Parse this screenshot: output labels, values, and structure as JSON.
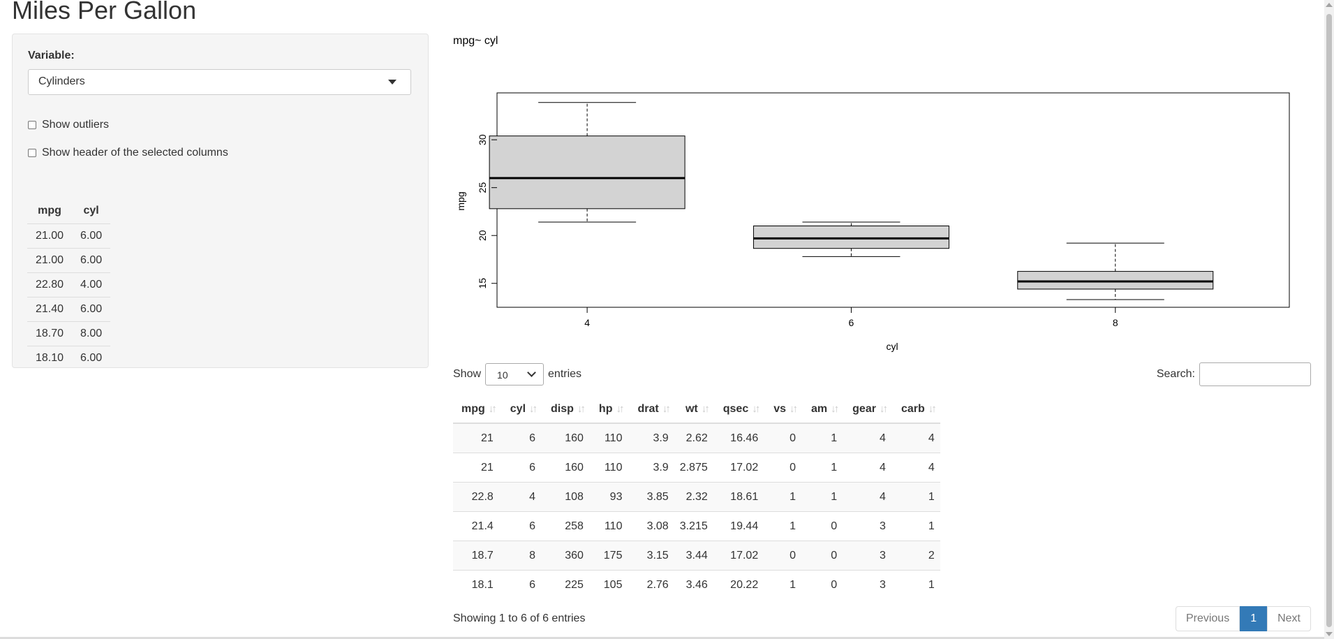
{
  "page_title": "Miles Per Gallon",
  "sidebar": {
    "variable_label": "Variable:",
    "variable_selected": "Cylinders",
    "checkboxes": [
      {
        "label": "Show outliers",
        "checked": false
      },
      {
        "label": "Show header of the selected columns",
        "checked": false
      }
    ],
    "mini_table": {
      "headers": [
        "mpg",
        "cyl"
      ],
      "rows": [
        [
          "21.00",
          "6.00"
        ],
        [
          "21.00",
          "6.00"
        ],
        [
          "22.80",
          "4.00"
        ],
        [
          "21.40",
          "6.00"
        ],
        [
          "18.70",
          "8.00"
        ],
        [
          "18.10",
          "6.00"
        ]
      ]
    }
  },
  "chart_data": {
    "type": "box",
    "title": "mpg~ cyl",
    "xlabel": "cyl",
    "ylabel": "mpg",
    "categories": [
      "4",
      "6",
      "8"
    ],
    "yticks": [
      15,
      20,
      25,
      30
    ],
    "ylim": [
      12.5,
      34.9
    ],
    "boxes": [
      {
        "category": "4",
        "min": 21.4,
        "q1": 22.8,
        "median": 26.0,
        "q3": 30.4,
        "max": 33.9
      },
      {
        "category": "6",
        "min": 17.8,
        "q1": 18.65,
        "median": 19.7,
        "q3": 21.0,
        "max": 21.4
      },
      {
        "category": "8",
        "min": 13.3,
        "q1": 14.4,
        "median": 15.2,
        "q3": 16.25,
        "max": 19.2
      }
    ],
    "box_fill": "#d3d3d3",
    "grid": false
  },
  "datatable": {
    "show_label": "Show",
    "length_value": "10",
    "entries_label": "entries",
    "search_label": "Search:",
    "search_value": "",
    "columns": [
      "mpg",
      "cyl",
      "disp",
      "hp",
      "drat",
      "wt",
      "qsec",
      "vs",
      "am",
      "gear",
      "carb"
    ],
    "rows": [
      [
        "21",
        "6",
        "160",
        "110",
        "3.9",
        "2.62",
        "16.46",
        "0",
        "1",
        "4",
        "4"
      ],
      [
        "21",
        "6",
        "160",
        "110",
        "3.9",
        "2.875",
        "17.02",
        "0",
        "1",
        "4",
        "4"
      ],
      [
        "22.8",
        "4",
        "108",
        "93",
        "3.85",
        "2.32",
        "18.61",
        "1",
        "1",
        "4",
        "1"
      ],
      [
        "21.4",
        "6",
        "258",
        "110",
        "3.08",
        "3.215",
        "19.44",
        "1",
        "0",
        "3",
        "1"
      ],
      [
        "18.7",
        "8",
        "360",
        "175",
        "3.15",
        "3.44",
        "17.02",
        "0",
        "0",
        "3",
        "2"
      ],
      [
        "18.1",
        "6",
        "225",
        "105",
        "2.76",
        "3.46",
        "20.22",
        "1",
        "0",
        "3",
        "1"
      ]
    ],
    "info": "Showing 1 to 6 of 6 entries",
    "pagination": {
      "previous": "Previous",
      "current": "1",
      "next": "Next"
    },
    "accent_color": "#337ab7"
  }
}
